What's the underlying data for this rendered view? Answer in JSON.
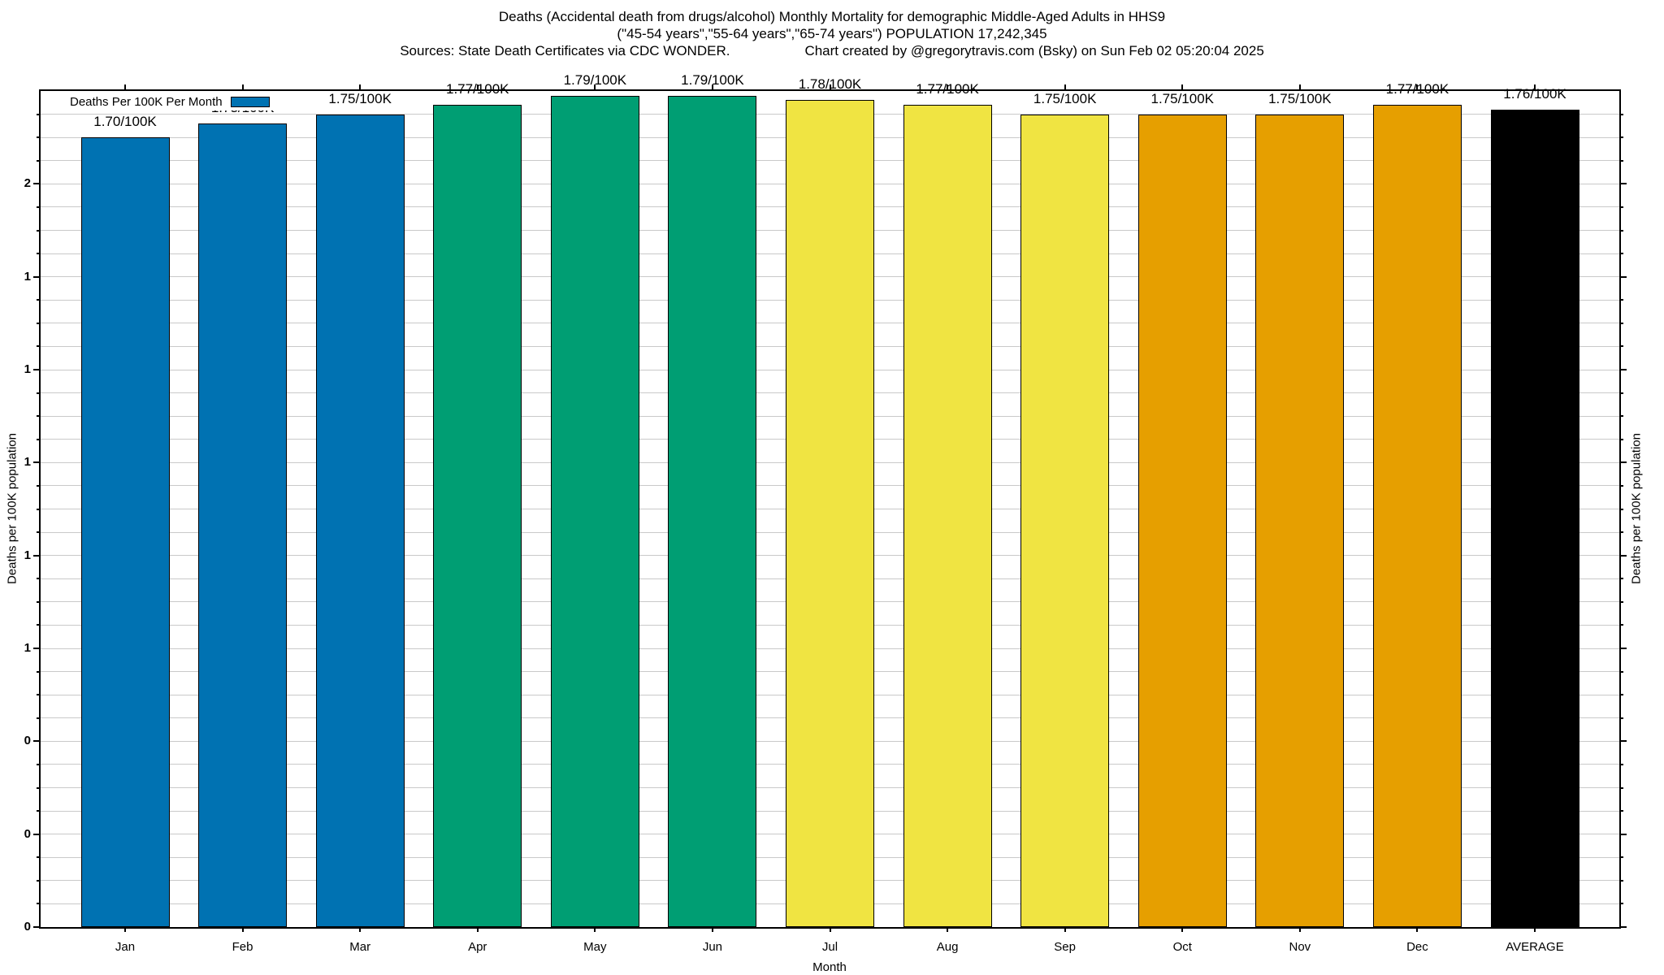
{
  "titles": {
    "line1": "Deaths (Accidental death from drugs/alcohol) Monthly Mortality for demographic Middle-Aged Adults in HHS9",
    "line2": "(\"45-54 years\",\"55-64 years\",\"65-74 years\") POPULATION 17,242,345",
    "sources": "Sources: State Death Certificates via CDC WONDER.",
    "credit": "Chart created by @gregorytravis.com (Bsky) on Sun Feb 02 05:20:04 2025"
  },
  "legend": {
    "label": "Deaths Per 100K Per Month",
    "swatch_color": "#0072B2"
  },
  "axes": {
    "y_label_left": "Deaths per 100K population",
    "y_label_right": "Deaths per 100K population",
    "x_label": "Month"
  },
  "chart_data": {
    "type": "bar",
    "title": "Deaths (Accidental death from drugs/alcohol) Monthly Mortality for demographic Middle-Aged Adults in HHS9",
    "subtitle": "(\"45-54 years\",\"55-64 years\",\"65-74 years\") POPULATION 17,242,345",
    "xlabel": "Month",
    "ylabel": "Deaths per 100K population",
    "legend_entry": "Deaths Per 100K Per Month",
    "legend_position": "top-left",
    "grid": true,
    "ylim": [
      0,
      1.8
    ],
    "ytick_major_step": 0.2,
    "minor_intervals_per_major": 4,
    "yticks": [
      {
        "value": 0.0,
        "label": "0"
      },
      {
        "value": 0.2,
        "label": "0"
      },
      {
        "value": 0.4,
        "label": "0"
      },
      {
        "value": 0.6,
        "label": "1"
      },
      {
        "value": 0.8,
        "label": "1"
      },
      {
        "value": 1.0,
        "label": "1"
      },
      {
        "value": 1.2,
        "label": "1"
      },
      {
        "value": 1.4,
        "label": "1"
      },
      {
        "value": 1.6,
        "label": "2"
      }
    ],
    "categories": [
      "Jan",
      "Feb",
      "Mar",
      "Apr",
      "May",
      "Jun",
      "Jul",
      "Aug",
      "Sep",
      "Oct",
      "Nov",
      "Dec",
      "AVERAGE"
    ],
    "values": [
      1.7,
      1.73,
      1.75,
      1.77,
      1.79,
      1.79,
      1.78,
      1.77,
      1.75,
      1.75,
      1.75,
      1.77,
      1.76
    ],
    "bar_labels": [
      "1.70/100K",
      "1.73/100K",
      "1.75/100K",
      "1.77/100K",
      "1.79/100K",
      "1.79/100K",
      "1.78/100K",
      "1.77/100K",
      "1.75/100K",
      "1.75/100K",
      "1.75/100K",
      "1.77/100K",
      "1.76/100K"
    ],
    "bar_colors": [
      "#0072B2",
      "#0072B2",
      "#0072B2",
      "#009E73",
      "#009E73",
      "#009E73",
      "#F0E442",
      "#F0E442",
      "#F0E442",
      "#E69F00",
      "#E69F00",
      "#E69F00",
      "#000000"
    ],
    "palette": {
      "q1_blue": "#0072B2",
      "q2_green": "#009E73",
      "q3_yellow": "#F0E442",
      "q4_orange": "#E69F00",
      "average_black": "#000000",
      "grid_gray": "#c9c9c9"
    }
  }
}
